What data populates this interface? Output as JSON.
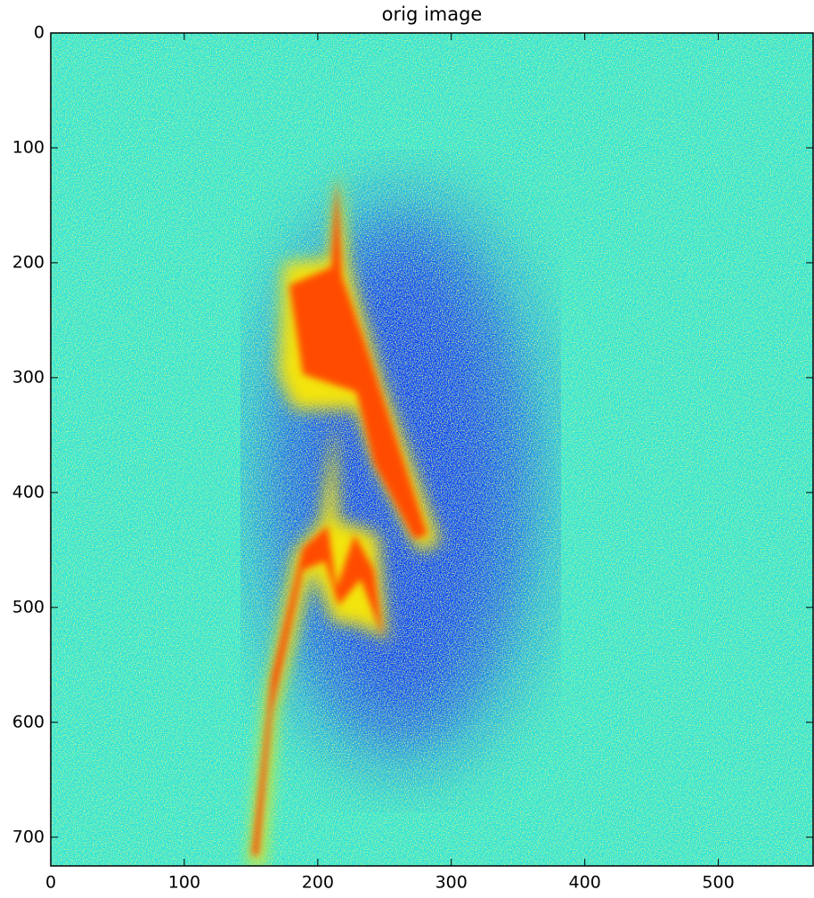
{
  "chart_data": {
    "type": "image",
    "title": "orig image",
    "colormap": "jet",
    "xlim": [
      0,
      571
    ],
    "ylim": [
      725,
      0
    ],
    "xticks": [
      0,
      100,
      200,
      300,
      400,
      500
    ],
    "yticks": [
      0,
      100,
      200,
      300,
      400,
      500,
      600,
      700
    ]
  }
}
